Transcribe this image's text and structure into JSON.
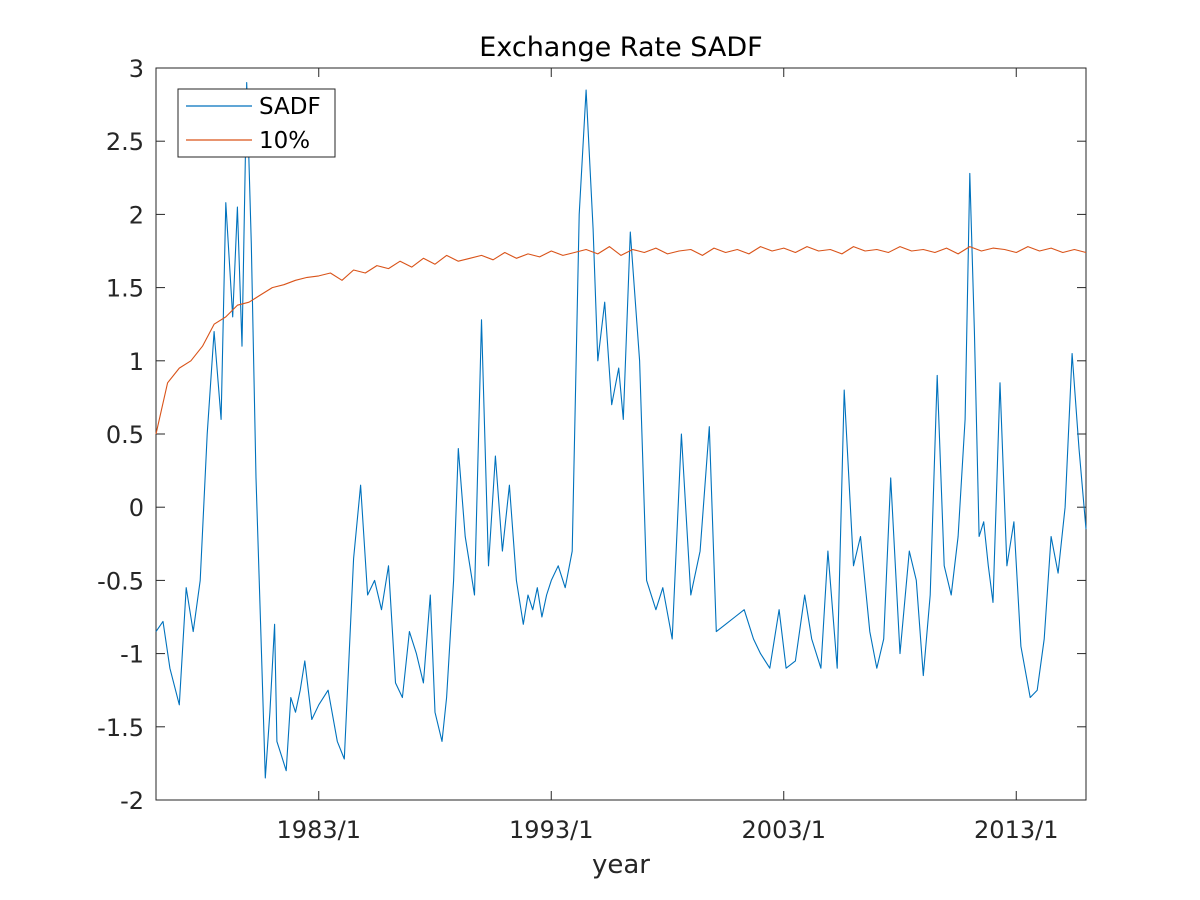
{
  "chart_data": {
    "type": "line",
    "title": "Exchange Rate SADF",
    "xlabel": "year",
    "ylabel": "",
    "xlim": [
      1976.0,
      2016.0
    ],
    "ylim": [
      -2,
      3
    ],
    "yticks": [
      -2,
      -1.5,
      -1,
      -0.5,
      0,
      0.5,
      1,
      1.5,
      2,
      2.5,
      3
    ],
    "ytick_labels": [
      "-2",
      "-1.5",
      "-1",
      "-0.5",
      "0",
      "0.5",
      "1",
      "1.5",
      "2",
      "2.5",
      "3"
    ],
    "xticks": [
      1983.0,
      1993.0,
      2003.0,
      2013.0
    ],
    "xtick_labels": [
      "1983/1",
      "1993/1",
      "2003/1",
      "2013/1"
    ],
    "grid": false,
    "legend": "top-left",
    "colors": {
      "sadf": "#0072BD",
      "cv10": "#D95319",
      "axis": "#262626"
    },
    "series": [
      {
        "name": "SADF",
        "x": [
          1976.0,
          1976.3,
          1976.6,
          1977.0,
          1977.3,
          1977.6,
          1977.9,
          1978.2,
          1978.5,
          1978.8,
          1979.0,
          1979.3,
          1979.5,
          1979.7,
          1979.9,
          1980.1,
          1980.3,
          1980.5,
          1980.7,
          1980.9,
          1981.1,
          1981.2,
          1981.4,
          1981.6,
          1981.8,
          1982.0,
          1982.2,
          1982.4,
          1982.7,
          1983.0,
          1983.4,
          1983.8,
          1984.1,
          1984.5,
          1984.8,
          1985.1,
          1985.4,
          1985.7,
          1986.0,
          1986.3,
          1986.6,
          1986.9,
          1987.2,
          1987.5,
          1987.8,
          1988.0,
          1988.3,
          1988.5,
          1988.8,
          1989.0,
          1989.3,
          1989.7,
          1990.0,
          1990.3,
          1990.6,
          1990.9,
          1991.2,
          1991.5,
          1991.8,
          1992.0,
          1992.2,
          1992.4,
          1992.6,
          1992.8,
          1993.0,
          1993.3,
          1993.6,
          1993.9,
          1994.2,
          1994.5,
          1994.8,
          1995.0,
          1995.3,
          1995.6,
          1995.9,
          1996.1,
          1996.4,
          1996.8,
          1997.1,
          1997.5,
          1997.8,
          1998.2,
          1998.6,
          1999.0,
          1999.4,
          1999.8,
          2000.1,
          2000.5,
          2000.9,
          2001.3,
          2001.7,
          2002.0,
          2002.4,
          2002.8,
          2003.1,
          2003.5,
          2003.9,
          2004.2,
          2004.6,
          2004.9,
          2005.3,
          2005.6,
          2006.0,
          2006.3,
          2006.7,
          2007.0,
          2007.3,
          2007.6,
          2008.0,
          2008.4,
          2008.7,
          2009.0,
          2009.3,
          2009.6,
          2009.9,
          2010.2,
          2010.5,
          2010.8,
          2011.0,
          2011.2,
          2011.4,
          2011.6,
          2011.8,
          2012.0,
          2012.3,
          2012.6,
          2012.9,
          2013.2,
          2013.6,
          2013.9,
          2014.2,
          2014.5,
          2014.8,
          2015.1,
          2015.4,
          2015.7,
          2016.0
        ],
        "y": [
          -0.85,
          -0.78,
          -1.1,
          -1.35,
          -0.55,
          -0.85,
          -0.5,
          0.5,
          1.2,
          0.6,
          2.08,
          1.3,
          2.05,
          1.1,
          2.9,
          1.8,
          0.2,
          -0.8,
          -1.85,
          -1.4,
          -0.8,
          -1.6,
          -1.7,
          -1.8,
          -1.3,
          -1.4,
          -1.25,
          -1.05,
          -1.45,
          -1.35,
          -1.25,
          -1.6,
          -1.72,
          -0.35,
          0.15,
          -0.6,
          -0.5,
          -0.7,
          -0.4,
          -1.2,
          -1.3,
          -0.85,
          -1.0,
          -1.2,
          -0.6,
          -1.4,
          -1.6,
          -1.3,
          -0.5,
          0.4,
          -0.2,
          -0.6,
          1.28,
          -0.4,
          0.35,
          -0.3,
          0.15,
          -0.5,
          -0.8,
          -0.6,
          -0.7,
          -0.55,
          -0.75,
          -0.6,
          -0.5,
          -0.4,
          -0.55,
          -0.3,
          2.0,
          2.85,
          1.9,
          1.0,
          1.4,
          0.7,
          0.95,
          0.6,
          1.88,
          1.0,
          -0.5,
          -0.7,
          -0.55,
          -0.9,
          0.5,
          -0.6,
          -0.3,
          0.55,
          -0.85,
          -0.8,
          -0.75,
          -0.7,
          -0.9,
          -1.0,
          -1.1,
          -0.7,
          -1.1,
          -1.05,
          -0.6,
          -0.9,
          -1.1,
          -0.3,
          -1.1,
          0.8,
          -0.4,
          -0.2,
          -0.85,
          -1.1,
          -0.9,
          0.2,
          -1.0,
          -0.3,
          -0.5,
          -1.15,
          -0.6,
          0.9,
          -0.4,
          -0.6,
          -0.2,
          0.6,
          2.28,
          1.2,
          -0.2,
          -0.1,
          -0.4,
          -0.65,
          0.85,
          -0.4,
          -0.1,
          -0.95,
          -1.3,
          -1.25,
          -0.9,
          -0.2,
          -0.45,
          0.0,
          1.05,
          0.4,
          -0.15
        ]
      },
      {
        "name": "10%",
        "x": [
          1976.0,
          1976.5,
          1977.0,
          1977.5,
          1978.0,
          1978.5,
          1979.0,
          1979.5,
          1980.0,
          1980.5,
          1981.0,
          1981.5,
          1982.0,
          1982.5,
          1983.0,
          1983.5,
          1984.0,
          1984.5,
          1985.0,
          1985.5,
          1986.0,
          1986.5,
          1987.0,
          1987.5,
          1988.0,
          1988.5,
          1989.0,
          1989.5,
          1990.0,
          1990.5,
          1991.0,
          1991.5,
          1992.0,
          1992.5,
          1993.0,
          1993.5,
          1994.0,
          1994.5,
          1995.0,
          1995.5,
          1996.0,
          1996.5,
          1997.0,
          1997.5,
          1998.0,
          1998.5,
          1999.0,
          1999.5,
          2000.0,
          2000.5,
          2001.0,
          2001.5,
          2002.0,
          2002.5,
          2003.0,
          2003.5,
          2004.0,
          2004.5,
          2005.0,
          2005.5,
          2006.0,
          2006.5,
          2007.0,
          2007.5,
          2008.0,
          2008.5,
          2009.0,
          2009.5,
          2010.0,
          2010.5,
          2011.0,
          2011.5,
          2012.0,
          2012.5,
          2013.0,
          2013.5,
          2014.0,
          2014.5,
          2015.0,
          2015.5,
          2016.0
        ],
        "y": [
          0.5,
          0.85,
          0.95,
          1.0,
          1.1,
          1.25,
          1.3,
          1.38,
          1.4,
          1.45,
          1.5,
          1.52,
          1.55,
          1.57,
          1.58,
          1.6,
          1.55,
          1.62,
          1.6,
          1.65,
          1.63,
          1.68,
          1.64,
          1.7,
          1.66,
          1.72,
          1.68,
          1.7,
          1.72,
          1.69,
          1.74,
          1.7,
          1.73,
          1.71,
          1.75,
          1.72,
          1.74,
          1.76,
          1.73,
          1.78,
          1.72,
          1.76,
          1.74,
          1.77,
          1.73,
          1.75,
          1.76,
          1.72,
          1.77,
          1.74,
          1.76,
          1.73,
          1.78,
          1.75,
          1.77,
          1.74,
          1.78,
          1.75,
          1.76,
          1.73,
          1.78,
          1.75,
          1.76,
          1.74,
          1.78,
          1.75,
          1.76,
          1.74,
          1.77,
          1.73,
          1.78,
          1.75,
          1.77,
          1.76,
          1.74,
          1.78,
          1.75,
          1.77,
          1.74,
          1.76,
          1.74
        ]
      }
    ]
  }
}
